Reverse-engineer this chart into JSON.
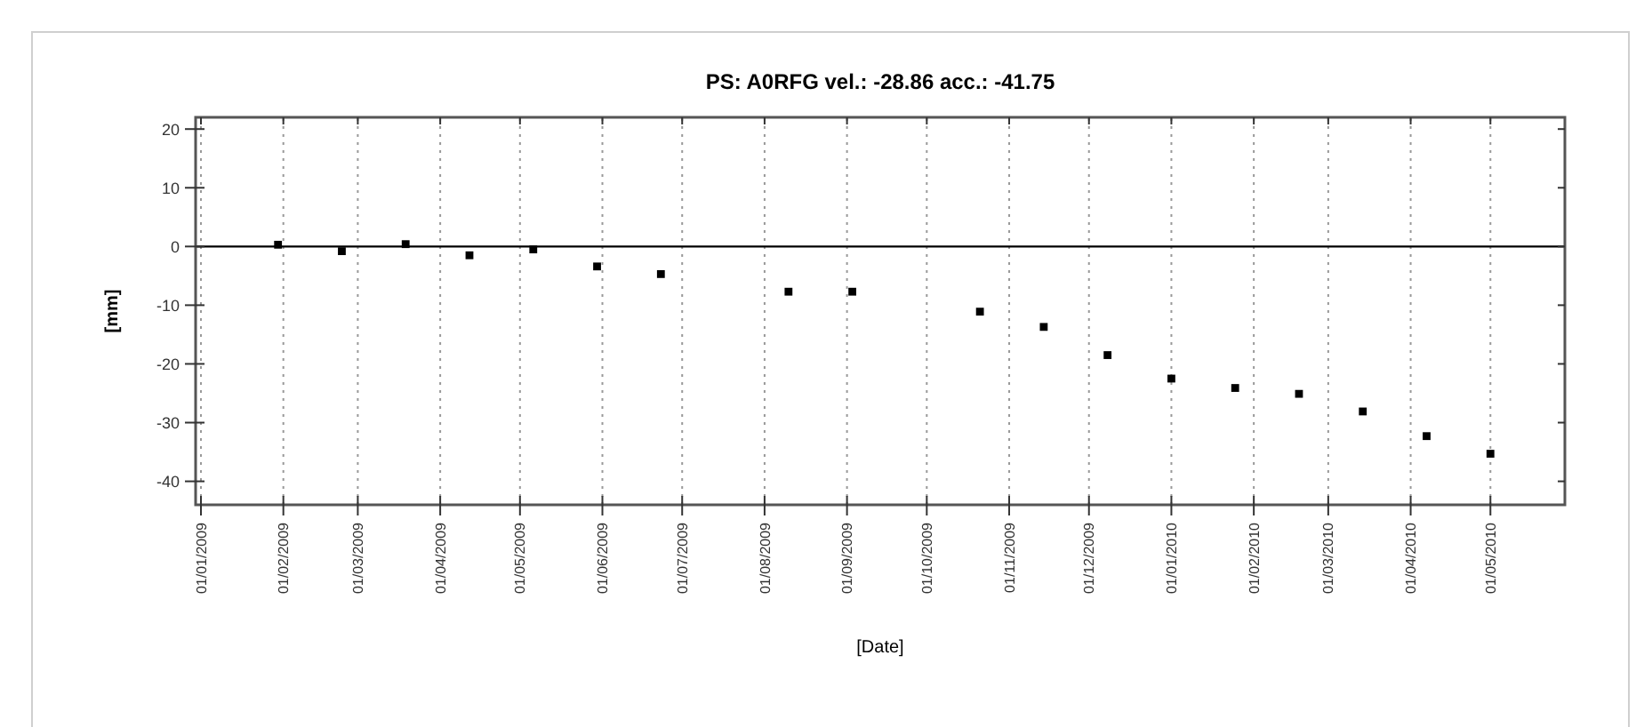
{
  "chart_data": {
    "type": "scatter",
    "title": "PS: A0RFG  vel.: -28.86 acc.: -41.75",
    "xlabel": "[Date]",
    "ylabel": "[mm]",
    "x": [
      "2009-01-30",
      "2009-02-23",
      "2009-03-19",
      "2009-04-12",
      "2009-05-06",
      "2009-05-30",
      "2009-06-23",
      "2009-08-10",
      "2009-09-03",
      "2009-10-21",
      "2009-11-14",
      "2009-12-08",
      "2010-01-01",
      "2010-01-25",
      "2010-02-18",
      "2010-03-14",
      "2010-04-07",
      "2010-05-01"
    ],
    "series": [
      {
        "color": "#000000",
        "values": [
          0.3,
          -0.8,
          0.4,
          -1.5,
          -0.5,
          -3.4,
          -4.7,
          -7.7,
          -7.7,
          -11.1,
          -13.7,
          -18.5,
          -22.5,
          -24.1,
          -25.1,
          -28.1,
          -32.3,
          -35.3
        ]
      }
    ],
    "xlim": [
      "2008-12-30",
      "2010-05-29"
    ],
    "xticks": [
      {
        "value": "2009-01-01",
        "label": "01/01/2009"
      },
      {
        "value": "2009-02-01",
        "label": "01/02/2009"
      },
      {
        "value": "2009-03-01",
        "label": "01/03/2009"
      },
      {
        "value": "2009-04-01",
        "label": "01/04/2009"
      },
      {
        "value": "2009-05-01",
        "label": "01/05/2009"
      },
      {
        "value": "2009-06-01",
        "label": "01/06/2009"
      },
      {
        "value": "2009-07-01",
        "label": "01/07/2009"
      },
      {
        "value": "2009-08-01",
        "label": "01/08/2009"
      },
      {
        "value": "2009-09-01",
        "label": "01/09/2009"
      },
      {
        "value": "2009-10-01",
        "label": "01/10/2009"
      },
      {
        "value": "2009-11-01",
        "label": "01/11/2009"
      },
      {
        "value": "2009-12-01",
        "label": "01/12/2009"
      },
      {
        "value": "2010-01-01",
        "label": "01/01/2010"
      },
      {
        "value": "2010-02-01",
        "label": "01/02/2010"
      },
      {
        "value": "2010-03-01",
        "label": "01/03/2010"
      },
      {
        "value": "2010-04-01",
        "label": "01/04/2010"
      },
      {
        "value": "2010-05-01",
        "label": "01/05/2010"
      }
    ],
    "ylim": [
      -44,
      22
    ],
    "yticks": [
      -40,
      -30,
      -20,
      -10,
      0,
      10,
      20
    ],
    "ref_lines": [
      {
        "axis": "y",
        "value": 0,
        "color": "#000000"
      }
    ],
    "grid": "x",
    "marker": "square"
  }
}
